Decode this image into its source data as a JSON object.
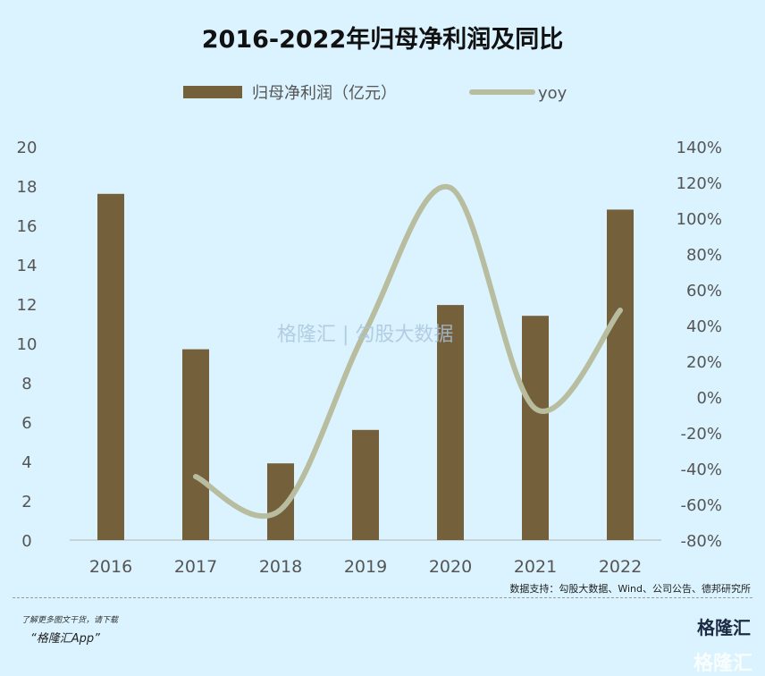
{
  "chart_data": {
    "type": "bar+line",
    "title": "2016-2022年归母净利润及同比",
    "categories": [
      "2016",
      "2017",
      "2018",
      "2019",
      "2020",
      "2021",
      "2022"
    ],
    "series": [
      {
        "name": "归母净利润（亿元）",
        "type": "bar",
        "axis": "left",
        "color": "#75603c",
        "values": [
          17.6,
          9.7,
          3.9,
          5.6,
          11.95,
          11.4,
          16.8
        ]
      },
      {
        "name": "yoy",
        "type": "line",
        "axis": "right",
        "color": "#b9bd9f",
        "values": [
          null,
          -44.5,
          -63,
          37,
          117,
          -6.5,
          48.5
        ]
      }
    ],
    "left_axis": {
      "ylim": [
        0,
        20
      ],
      "ticks": [
        "0",
        "2",
        "4",
        "6",
        "8",
        "10",
        "12",
        "14",
        "16",
        "18",
        "20"
      ]
    },
    "right_axis": {
      "ylim": [
        -80,
        140
      ],
      "ticks": [
        "-80%",
        "-60%",
        "-40%",
        "-20%",
        "0%",
        "20%",
        "40%",
        "60%",
        "80%",
        "100%",
        "120%",
        "140%"
      ]
    },
    "legend_placement": "top-center"
  },
  "source": "数据支持：勾股大数据、Wind、公司公告、德邦研究所",
  "promo": {
    "line1": "了解更多图文干货，请下载",
    "line2": "“格隆汇App”"
  },
  "logo": "格隆汇",
  "watermark": "格隆汇 | 勾股大数据"
}
